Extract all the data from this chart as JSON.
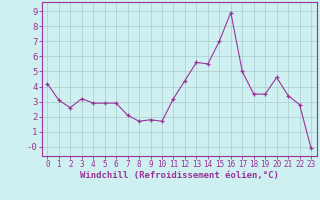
{
  "x": [
    0,
    1,
    2,
    3,
    4,
    5,
    6,
    7,
    8,
    9,
    10,
    11,
    12,
    13,
    14,
    15,
    16,
    17,
    18,
    19,
    20,
    21,
    22,
    23
  ],
  "y": [
    4.2,
    3.1,
    2.6,
    3.2,
    2.9,
    2.9,
    2.9,
    2.1,
    1.7,
    1.8,
    1.7,
    3.2,
    4.4,
    5.6,
    5.5,
    7.0,
    8.9,
    5.0,
    3.5,
    3.5,
    4.6,
    3.4,
    2.8,
    -0.1
  ],
  "line_color": "#993399",
  "marker": "+",
  "bg_color": "#cff0f0",
  "grid_color": "#aacccc",
  "axis_color": "#993399",
  "xlabel": "Windchill (Refroidissement éolien,°C)",
  "ylim": [
    -0.6,
    9.6
  ],
  "xlim": [
    -0.5,
    23.5
  ],
  "yticks": [
    0,
    1,
    2,
    3,
    4,
    5,
    6,
    7,
    8,
    9
  ],
  "ytick_labels": [
    "-0",
    "1",
    "2",
    "3",
    "4",
    "5",
    "6",
    "7",
    "8",
    "9"
  ],
  "xticks": [
    0,
    1,
    2,
    3,
    4,
    5,
    6,
    7,
    8,
    9,
    10,
    11,
    12,
    13,
    14,
    15,
    16,
    17,
    18,
    19,
    20,
    21,
    22,
    23
  ],
  "xlabel_fontsize": 6.5,
  "ytick_fontsize": 6.5,
  "xtick_fontsize": 5.5
}
